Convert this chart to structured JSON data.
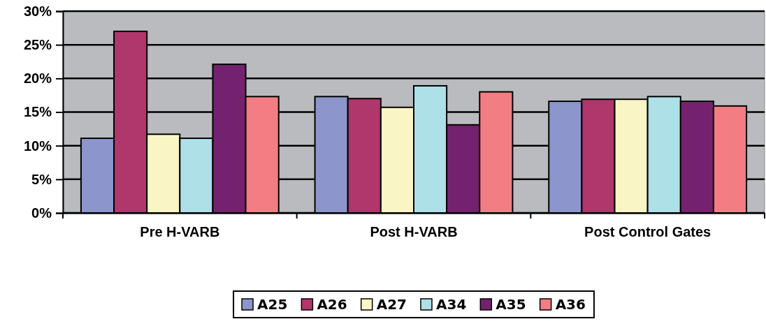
{
  "chart_data": {
    "type": "bar",
    "categories": [
      "Pre H-VARB",
      "Post H-VARB",
      "Post Control Gates"
    ],
    "series": [
      {
        "name": "A25",
        "color": "#8c96cc",
        "values": [
          11.1,
          17.3,
          16.6
        ]
      },
      {
        "name": "A26",
        "color": "#b0376b",
        "values": [
          27.0,
          17.0,
          16.9
        ]
      },
      {
        "name": "A27",
        "color": "#faf5c4",
        "values": [
          11.7,
          15.7,
          16.9
        ]
      },
      {
        "name": "A34",
        "color": "#aee0e8",
        "values": [
          11.1,
          18.9,
          17.3
        ]
      },
      {
        "name": "A35",
        "color": "#74226f",
        "values": [
          22.1,
          13.1,
          16.6
        ]
      },
      {
        "name": "A36",
        "color": "#f27e83",
        "values": [
          17.3,
          18.0,
          15.9
        ]
      }
    ],
    "ylim": [
      0,
      30
    ],
    "yticks": [
      {
        "value": 0,
        "label": "0%"
      },
      {
        "value": 5,
        "label": "5%"
      },
      {
        "value": 10,
        "label": "10%"
      },
      {
        "value": 15,
        "label": "15%"
      },
      {
        "value": 20,
        "label": "20%"
      },
      {
        "value": 25,
        "label": "25%"
      },
      {
        "value": 30,
        "label": "30%"
      }
    ],
    "grid": "y",
    "legend": "bottom"
  }
}
